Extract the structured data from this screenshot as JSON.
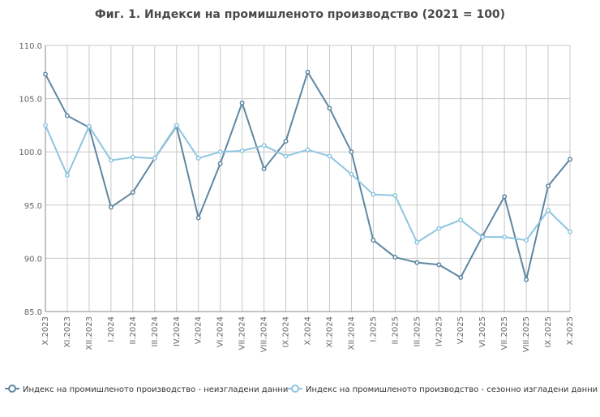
{
  "chart_data": {
    "type": "line",
    "title": "Фиг. 1. Индекси на промишленото производство (2021 = 100)",
    "xlabel": "",
    "ylabel": "",
    "ylim": [
      85,
      110
    ],
    "yticks": [
      "85.0",
      "90.0",
      "95.0",
      "100.0",
      "105.0",
      "110.0"
    ],
    "grid": true,
    "legend_position": "bottom",
    "categories": [
      "X.2023",
      "XI.2023",
      "XII.2023",
      "I.2024",
      "II.2024",
      "III.2024",
      "IV.2024",
      "V.2024",
      "VI.2024",
      "VII.2024",
      "VIII.2024",
      "IX.2024",
      "X.2024",
      "XI.2024",
      "XII.2024",
      "I.2025",
      "II.2025",
      "III.2025",
      "IV.2025",
      "V.2025",
      "VI.2025",
      "VII.2025",
      "VIII.2025",
      "IX.2025",
      "X.2025"
    ],
    "series": [
      {
        "name": "Индекс на промишленото производство - неизгладени данни",
        "color": "#5f87a2",
        "values": [
          107.3,
          103.4,
          102.3,
          94.8,
          96.2,
          99.4,
          102.4,
          93.8,
          98.9,
          104.6,
          98.4,
          101.0,
          107.5,
          104.1,
          100.0,
          91.7,
          90.1,
          89.6,
          89.4,
          88.2,
          92.1,
          95.8,
          88.0,
          96.8,
          99.3
        ]
      },
      {
        "name": "Индекс на промишленото производство - сезонно изгладени данни",
        "color": "#8fc6df",
        "values": [
          102.5,
          97.8,
          102.4,
          99.2,
          99.5,
          99.4,
          102.5,
          99.4,
          100.0,
          100.1,
          100.6,
          99.6,
          100.2,
          99.6,
          97.9,
          96.0,
          95.9,
          91.5,
          92.8,
          93.6,
          92.0,
          92.0,
          91.7,
          94.5,
          92.5
        ]
      }
    ]
  }
}
